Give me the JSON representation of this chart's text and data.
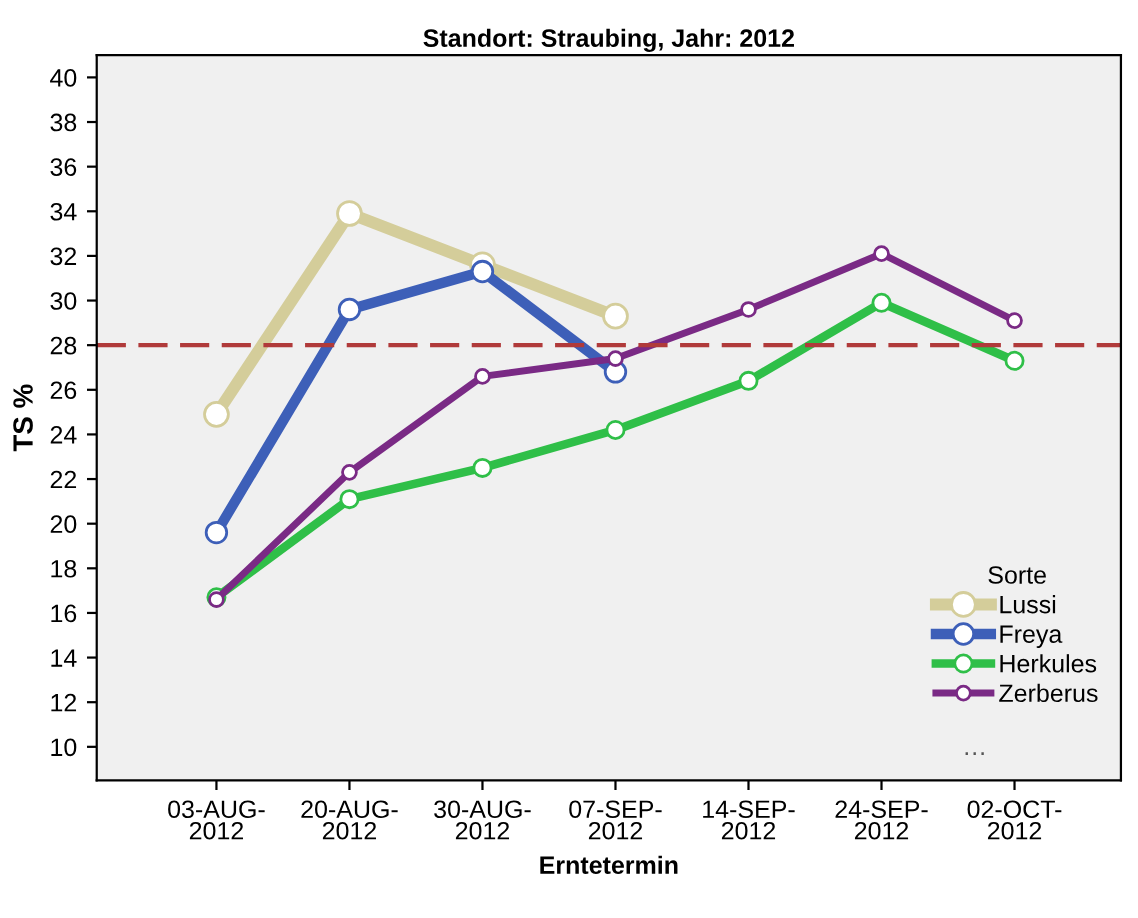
{
  "chart_data": {
    "type": "line",
    "title": "Standort: Straubing, Jahr: 2012",
    "xlabel": "Erntetermin",
    "ylabel": "TS %",
    "legend_title": "Sorte",
    "categories": [
      "03-AUG-\n2012",
      "20-AUG-\n2012",
      "30-AUG-\n2012",
      "07-SEP-\n2012",
      "14-SEP-\n2012",
      "24-SEP-\n2012",
      "02-OCT-\n2012"
    ],
    "series": [
      {
        "name": "Lussi",
        "color": "#d4cd9a",
        "values": [
          24.9,
          33.9,
          31.6,
          29.3,
          null,
          null,
          null
        ]
      },
      {
        "name": "Freya",
        "color": "#3d5fb8",
        "values": [
          19.6,
          29.6,
          31.3,
          26.8,
          null,
          null,
          null
        ]
      },
      {
        "name": "Herkules",
        "color": "#2fbf48",
        "values": [
          16.7,
          21.1,
          22.5,
          24.2,
          26.4,
          29.9,
          27.3
        ]
      },
      {
        "name": "Zerberus",
        "color": "#7a2a85",
        "values": [
          16.6,
          22.3,
          26.6,
          27.4,
          29.6,
          32.1,
          29.1
        ]
      }
    ],
    "ylim": [
      8.5,
      41
    ],
    "yticks": [
      10,
      12,
      14,
      16,
      18,
      20,
      22,
      24,
      26,
      28,
      30,
      32,
      34,
      36,
      38,
      40
    ],
    "ref_lines": [
      {
        "axis": "y",
        "value": 28,
        "color": "#b03a3a",
        "line_style": "dashed"
      }
    ],
    "annotations": [
      "…"
    ],
    "marker": "circle",
    "line_style": "solid",
    "grid": false,
    "legend": "bottom right"
  }
}
